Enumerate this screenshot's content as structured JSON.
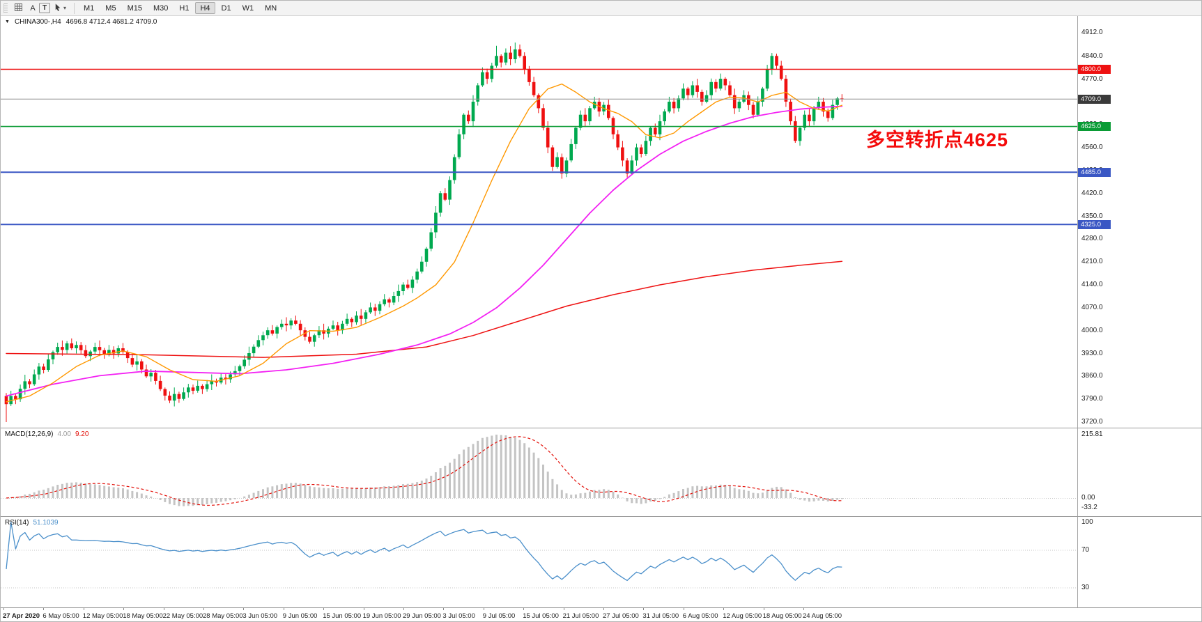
{
  "toolbar": {
    "a_button": "A",
    "t_button": "T",
    "dropdown_caret": "▾",
    "timeframes": [
      "M1",
      "M5",
      "M15",
      "M30",
      "H1",
      "H4",
      "D1",
      "W1",
      "MN"
    ],
    "active_timeframe": "H4"
  },
  "chart_data": {
    "type": "candlestick",
    "symbol": "CHINA300-",
    "timeframe": "H4",
    "symbol_arrow": "▼",
    "symbol_ohlc": {
      "label": "CHINA300-,H4",
      "values": "4696.8 4712.4 4681.2 4709.0",
      "open": 4696.8,
      "high": 4712.4,
      "low": 4681.2,
      "close": 4709.0
    },
    "price_axis": {
      "min": 3720.0,
      "max": 4912.0,
      "ticks": [
        4912.0,
        4840.0,
        4770.0,
        4700.0,
        4630.0,
        4560.0,
        4490.0,
        4420.0,
        4350.0,
        4280.0,
        4210.0,
        4140.0,
        4070.0,
        4000.0,
        3930.0,
        3860.0,
        3790.0,
        3720.0
      ]
    },
    "hlines": [
      {
        "price": 4800.0,
        "tag": "4800.0",
        "color": "#ee1111",
        "width": 1.6
      },
      {
        "price": 4709.0,
        "tag": "4709.0",
        "color": "#909090",
        "tag_bg": "#3a3a3a",
        "width": 1,
        "current": true
      },
      {
        "price": 4625.0,
        "tag": "4625.0",
        "color": "#0a9b35",
        "width": 1.6
      },
      {
        "price": 4485.0,
        "tag": "4485.0",
        "color": "#3a57c4",
        "width": 2
      },
      {
        "price": 4325.0,
        "tag": "4325.0",
        "color": "#3a57c4",
        "width": 2
      }
    ],
    "candles": {
      "up_color": "#00a94f",
      "down_color": "#ef1010",
      "open_first": 3800,
      "closes": [
        3775,
        3800,
        3790,
        3822,
        3845,
        3836,
        3866,
        3890,
        3880,
        3912,
        3934,
        3950,
        3941,
        3961,
        3946,
        3956,
        3940,
        3922,
        3936,
        3950,
        3940,
        3926,
        3941,
        3930,
        3946,
        3935,
        3916,
        3896,
        3906,
        3881,
        3860,
        3871,
        3846,
        3821,
        3801,
        3786,
        3806,
        3791,
        3811,
        3826,
        3816,
        3831,
        3821,
        3836,
        3846,
        3841,
        3856,
        3851,
        3866,
        3876,
        3891,
        3911,
        3931,
        3951,
        3971,
        3986,
        4001,
        3991,
        4011,
        4021,
        4016,
        4031,
        4021,
        4001,
        3981,
        3966,
        3986,
        4001,
        3991,
        4006,
        4016,
        4001,
        4021,
        4036,
        4026,
        4046,
        4036,
        4056,
        4071,
        4061,
        4081,
        4096,
        4086,
        4106,
        4121,
        4141,
        4131,
        4156,
        4181,
        4211,
        4251,
        4301,
        4361,
        4421,
        4401,
        4461,
        4531,
        4601,
        4661,
        4641,
        4701,
        4751,
        4791,
        4771,
        4811,
        4841,
        4821,
        4851,
        4831,
        4861,
        4841,
        4801,
        4761,
        4721,
        4681,
        4621,
        4561,
        4501,
        4531,
        4481,
        4521,
        4571,
        4621,
        4661,
        4641,
        4681,
        4701,
        4671,
        4691,
        4651,
        4601,
        4561,
        4521,
        4481,
        4521,
        4561,
        4541,
        4581,
        4621,
        4601,
        4641,
        4671,
        4701,
        4681,
        4711,
        4741,
        4721,
        4751,
        4731,
        4701,
        4721,
        4761,
        4741,
        4771,
        4751,
        4721,
        4681,
        4701,
        4721,
        4691,
        4661,
        4701,
        4741,
        4801,
        4841,
        4811,
        4771,
        4701,
        4641,
        4581,
        4621,
        4661,
        4641,
        4681,
        4701,
        4671,
        4651,
        4691,
        4711,
        4709
      ],
      "wick_high_cycle": [
        9,
        16,
        5,
        13,
        20,
        7,
        15,
        11
      ],
      "wick_low_cycle": [
        11,
        6,
        15,
        8,
        18,
        12,
        5,
        16
      ],
      "overrides": {
        "0": {
          "low": 3720
        },
        "105": {
          "high": 4872
        },
        "109": {
          "high": 4882
        },
        "164": {
          "high": 4850
        }
      }
    },
    "moving_averages": [
      {
        "name": "slow",
        "color": "#ee1111",
        "width": 1.5,
        "points": [
          [
            0,
            3930
          ],
          [
            30,
            3926
          ],
          [
            55,
            3918
          ],
          [
            75,
            3928
          ],
          [
            90,
            3950
          ],
          [
            100,
            3985
          ],
          [
            110,
            4030
          ],
          [
            120,
            4075
          ],
          [
            130,
            4110
          ],
          [
            140,
            4140
          ],
          [
            150,
            4165
          ],
          [
            160,
            4185
          ],
          [
            170,
            4200
          ],
          [
            179,
            4212
          ]
        ]
      },
      {
        "name": "medium",
        "color": "#f321f3",
        "width": 1.8,
        "points": [
          [
            0,
            3800
          ],
          [
            10,
            3836
          ],
          [
            20,
            3862
          ],
          [
            30,
            3876
          ],
          [
            40,
            3872
          ],
          [
            50,
            3868
          ],
          [
            60,
            3880
          ],
          [
            70,
            3900
          ],
          [
            80,
            3928
          ],
          [
            88,
            3956
          ],
          [
            95,
            3990
          ],
          [
            100,
            4025
          ],
          [
            105,
            4070
          ],
          [
            110,
            4130
          ],
          [
            115,
            4200
          ],
          [
            120,
            4280
          ],
          [
            125,
            4360
          ],
          [
            130,
            4430
          ],
          [
            135,
            4490
          ],
          [
            140,
            4540
          ],
          [
            145,
            4580
          ],
          [
            150,
            4610
          ],
          [
            155,
            4635
          ],
          [
            160,
            4655
          ],
          [
            165,
            4668
          ],
          [
            170,
            4678
          ],
          [
            175,
            4684
          ],
          [
            179,
            4687
          ]
        ]
      },
      {
        "name": "fast",
        "color": "#ff9800",
        "width": 1.4,
        "points": [
          [
            0,
            3782
          ],
          [
            5,
            3800
          ],
          [
            10,
            3840
          ],
          [
            15,
            3890
          ],
          [
            20,
            3925
          ],
          [
            25,
            3938
          ],
          [
            30,
            3920
          ],
          [
            35,
            3880
          ],
          [
            40,
            3850
          ],
          [
            45,
            3845
          ],
          [
            50,
            3862
          ],
          [
            55,
            3900
          ],
          [
            60,
            3960
          ],
          [
            65,
            4000
          ],
          [
            70,
            3998
          ],
          [
            75,
            4010
          ],
          [
            80,
            4040
          ],
          [
            85,
            4075
          ],
          [
            88,
            4100
          ],
          [
            92,
            4140
          ],
          [
            96,
            4210
          ],
          [
            100,
            4330
          ],
          [
            104,
            4460
          ],
          [
            108,
            4580
          ],
          [
            112,
            4680
          ],
          [
            116,
            4740
          ],
          [
            119,
            4755
          ],
          [
            122,
            4730
          ],
          [
            125,
            4700
          ],
          [
            128,
            4680
          ],
          [
            131,
            4665
          ],
          [
            134,
            4640
          ],
          [
            137,
            4600
          ],
          [
            140,
            4590
          ],
          [
            143,
            4605
          ],
          [
            146,
            4640
          ],
          [
            149,
            4670
          ],
          [
            152,
            4700
          ],
          [
            155,
            4715
          ],
          [
            158,
            4712
          ],
          [
            161,
            4700
          ],
          [
            164,
            4720
          ],
          [
            167,
            4730
          ],
          [
            170,
            4700
          ],
          [
            173,
            4680
          ],
          [
            176,
            4672
          ],
          [
            179,
            4690
          ]
        ]
      }
    ],
    "macd": {
      "label": "MACD(12,26,9)",
      "display_main": "4.00",
      "display_signal": "9.20",
      "axis_labels": [
        "215.81",
        "0.00",
        "-33.2"
      ],
      "max": 215.81,
      "min": -33.2,
      "hist_color": "#c4c4c4",
      "signal_color": "#e3120b"
    },
    "rsi": {
      "label": "RSI(14)",
      "display_value": "51.1039",
      "period": 14,
      "value": 51.1039,
      "color": "#4a8fca",
      "levels": [
        100,
        70,
        30
      ],
      "dotted_levels": [
        70,
        30
      ]
    },
    "annotation": {
      "text": "多空转折点4625",
      "color": "#f40b0b"
    },
    "time_labels": [
      "27 Apr 2020",
      "6 May 05:00",
      "12 May 05:00",
      "18 May 05:00",
      "22 May 05:00",
      "28 May 05:00",
      "3 Jun 05:00",
      "9 Jun 05:00",
      "15 Jun 05:00",
      "19 Jun 05:00",
      "29 Jun 05:00",
      "3 Jul 05:00",
      "9 Jul 05:00",
      "15 Jul 05:00",
      "21 Jul 05:00",
      "27 Jul 05:00",
      "31 Jul 05:00",
      "6 Aug 05:00",
      "12 Aug 05:00",
      "18 Aug 05:00",
      "24 Aug 05:00"
    ]
  }
}
